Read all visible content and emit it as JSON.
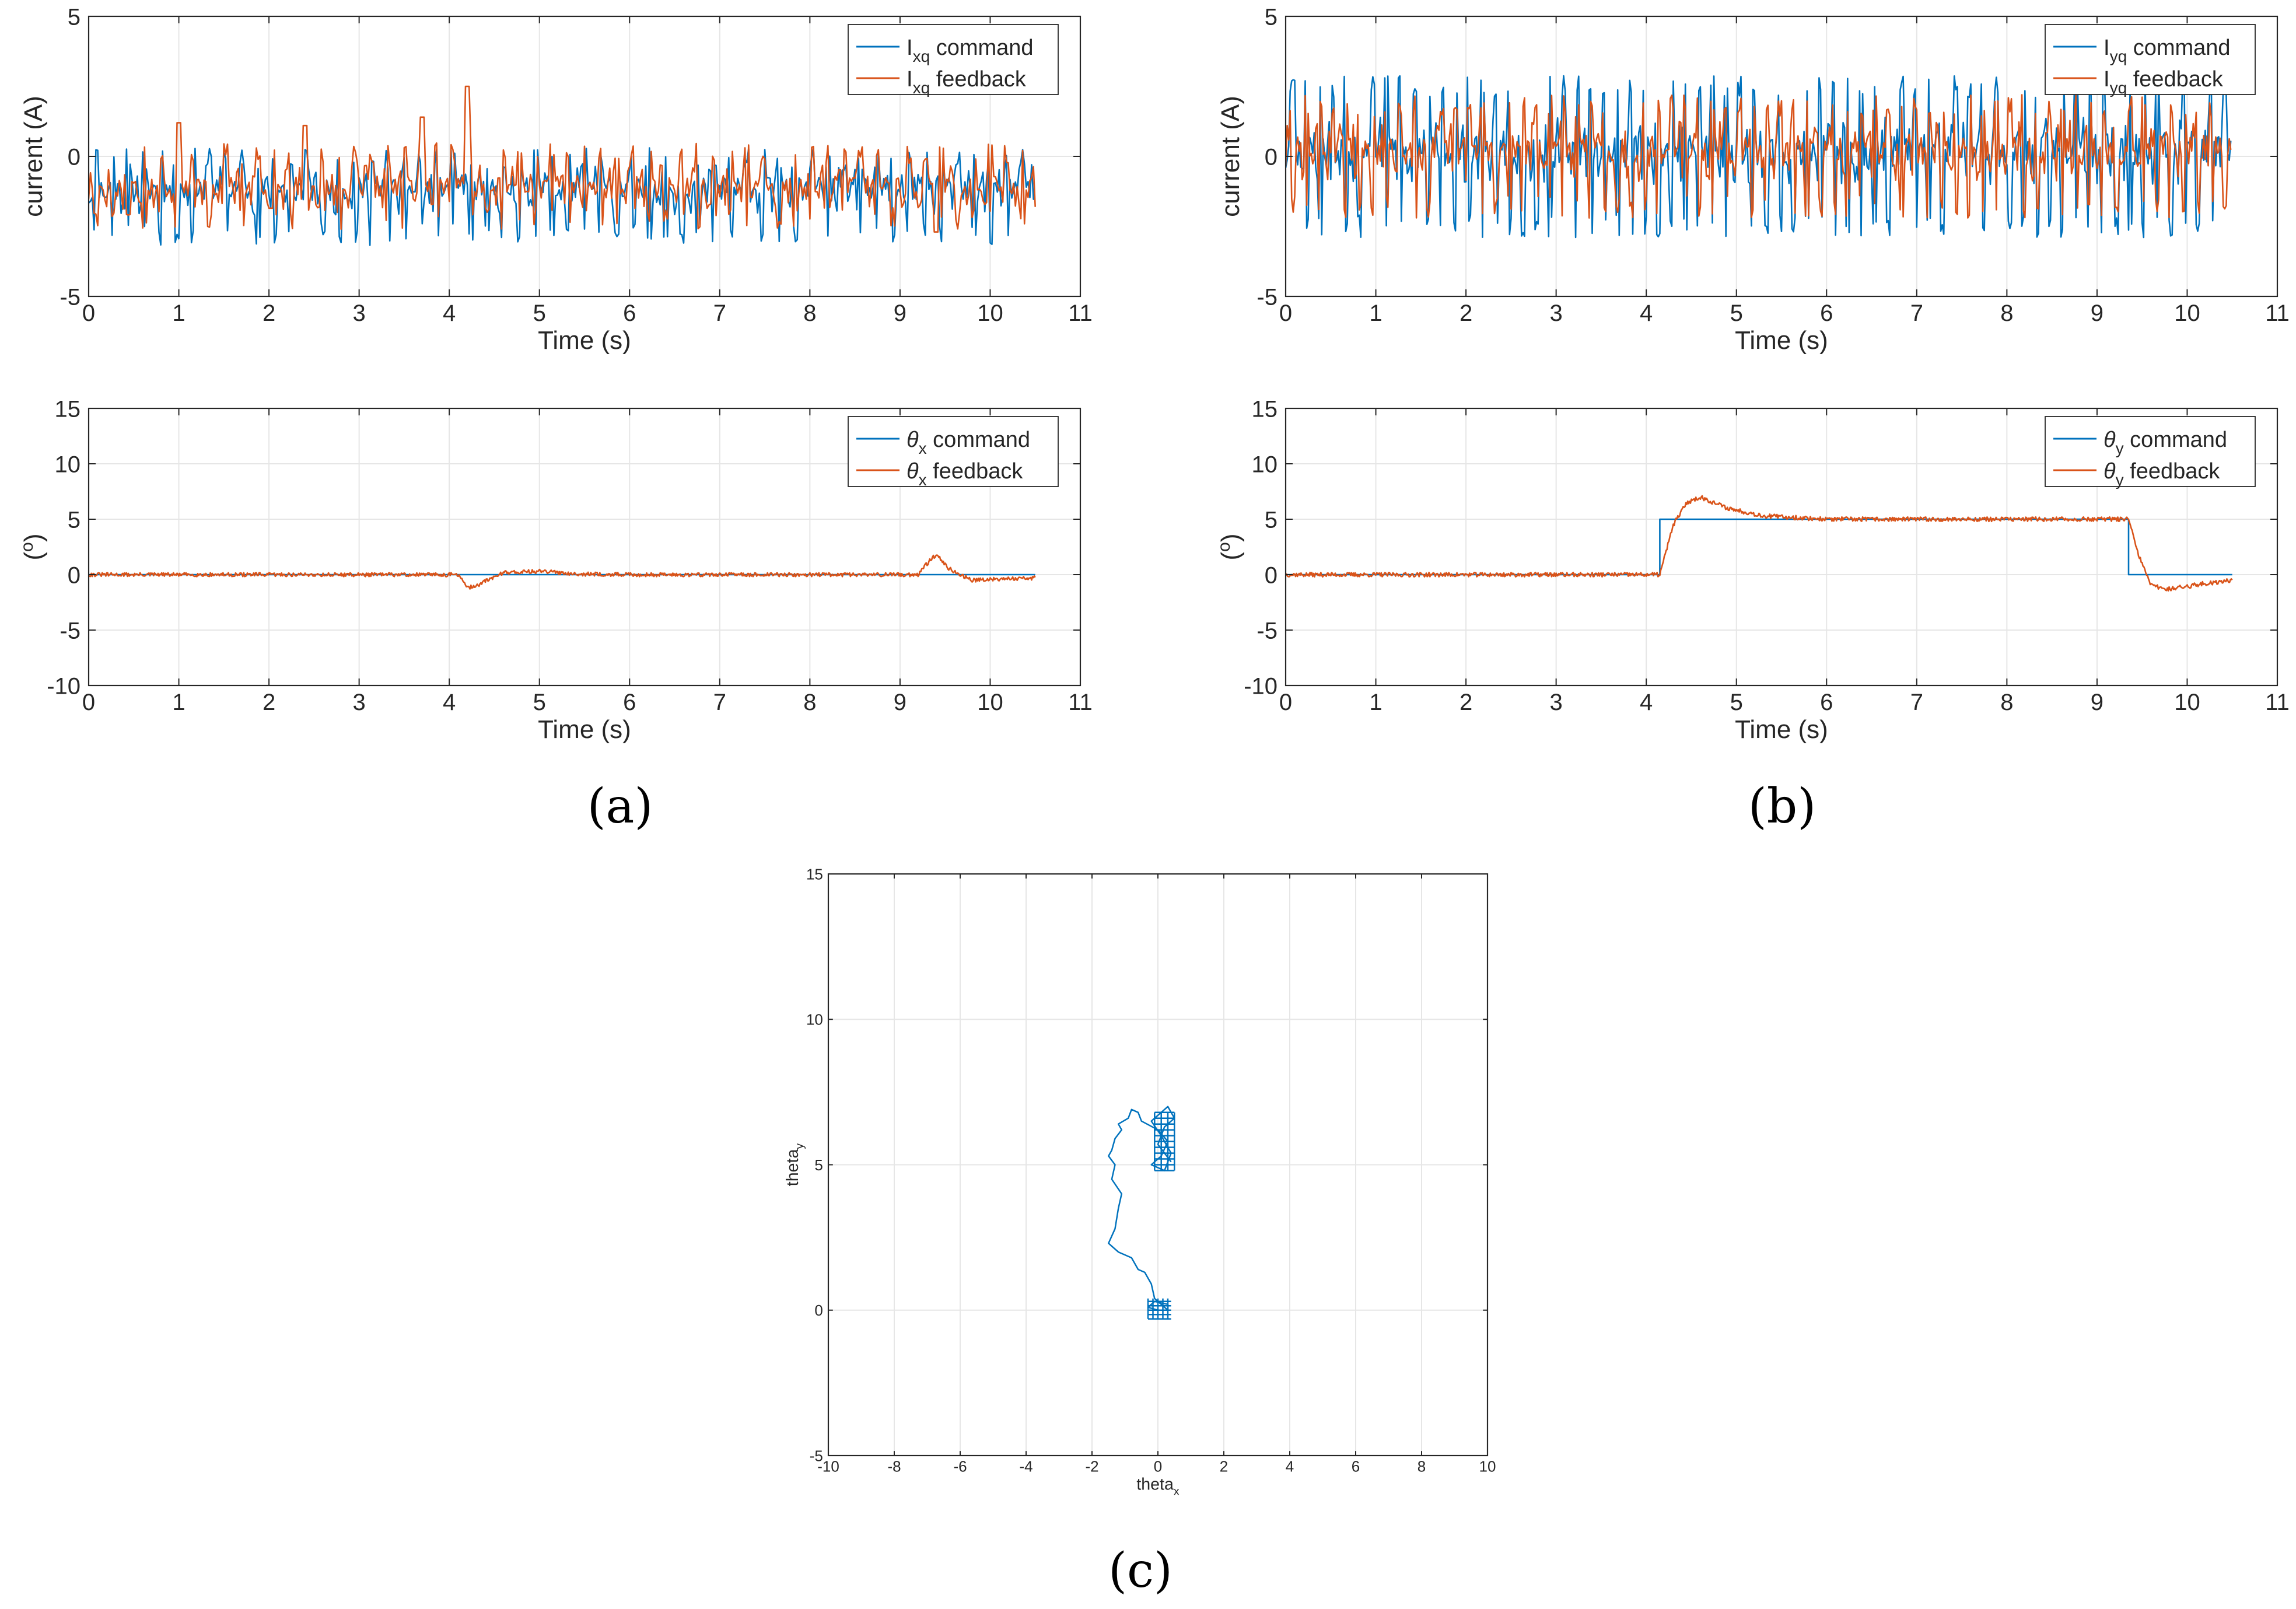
{
  "figure": {
    "panel_labels": [
      "(a)",
      "(b)",
      "(c)"
    ]
  },
  "colors": {
    "command": "#0072BD",
    "feedback": "#D95319",
    "grid": "#e6e6e6",
    "axis": "#262626"
  },
  "chart_data": [
    {
      "id": "ixq",
      "panel": "(a)",
      "type": "line",
      "xlabel": "Time (s)",
      "ylabel": "current (A)",
      "xlim": [
        0,
        11
      ],
      "ylim": [
        -5,
        5
      ],
      "xticks": [
        0,
        1,
        2,
        3,
        4,
        5,
        6,
        7,
        8,
        9,
        10,
        11
      ],
      "yticks": [
        -5,
        0,
        5
      ],
      "grid": true,
      "legend_position": "top-right",
      "legend": [
        {
          "main": "I",
          "sub": "xq",
          "rest": " command"
        },
        {
          "main": "I",
          "sub": "xq",
          "rest": " feedback"
        }
      ],
      "x_end": 10.5,
      "series": [
        {
          "name": "Ixq command",
          "kind": "pulse",
          "center": -1.2,
          "dev": 0.9,
          "spike_low": -3.2,
          "spike_high": 0.3,
          "period": 0.06,
          "seed": 11
        },
        {
          "name": "Ixq feedback",
          "kind": "pulse",
          "center": -1.1,
          "dev": 0.8,
          "spike_low": -2.6,
          "spike_high": 0.5,
          "period": 0.06,
          "seed": 17,
          "peaks": [
            {
              "x": 4.2,
              "y": 2.5
            },
            {
              "x": 1.0,
              "y": 1.2
            },
            {
              "x": 2.4,
              "y": 1.1
            },
            {
              "x": 3.7,
              "y": 1.4
            },
            {
              "x": 9.4,
              "y": -2.7
            }
          ]
        }
      ]
    },
    {
      "id": "iyq",
      "panel": "(b)",
      "type": "line",
      "xlabel": "Time (s)",
      "ylabel": "current (A)",
      "xlim": [
        0,
        11
      ],
      "ylim": [
        -5,
        5
      ],
      "xticks": [
        0,
        1,
        2,
        3,
        4,
        5,
        6,
        7,
        8,
        9,
        10,
        11
      ],
      "yticks": [
        -5,
        0,
        5
      ],
      "grid": true,
      "legend_position": "top-right",
      "legend": [
        {
          "main": "I",
          "sub": "yq",
          "rest": " command"
        },
        {
          "main": "I",
          "sub": "yq",
          "rest": " feedback"
        }
      ],
      "x_end": 10.5,
      "series": [
        {
          "name": "Iyq command",
          "kind": "pulse",
          "center": 0.2,
          "dev": 1.2,
          "spike_low": -2.9,
          "spike_high": 2.9,
          "period": 0.05,
          "seed": 23
        },
        {
          "name": "Iyq feedback",
          "kind": "pulse",
          "center": 0.2,
          "dev": 1.1,
          "spike_low": -2.2,
          "spike_high": 2.2,
          "period": 0.05,
          "seed": 29
        }
      ]
    },
    {
      "id": "thetax",
      "panel": "(a)",
      "type": "line",
      "xlabel": "Time (s)",
      "ylabel": "(o)",
      "xlim": [
        0,
        11
      ],
      "ylim": [
        -10,
        15
      ],
      "xticks": [
        0,
        1,
        2,
        3,
        4,
        5,
        6,
        7,
        8,
        9,
        10,
        11
      ],
      "yticks": [
        -10,
        -5,
        0,
        5,
        10,
        15
      ],
      "grid": true,
      "legend_position": "top-right",
      "legend": [
        {
          "main": "θ",
          "sub": "x",
          "rest": " command"
        },
        {
          "main": "θ",
          "sub": "x",
          "rest": " feedback"
        }
      ],
      "series": [
        {
          "name": "theta_x command",
          "kind": "line",
          "x": [
            0,
            10.5
          ],
          "y": [
            0,
            0
          ]
        },
        {
          "name": "theta_x feedback",
          "kind": "noisy",
          "noise": 0.18,
          "seed": 31,
          "x": [
            0,
            4.1,
            4.2,
            4.3,
            4.6,
            5.0,
            5.5,
            6.0,
            9.2,
            9.3,
            9.4,
            9.55,
            9.8,
            10.0,
            10.5
          ],
          "y": [
            0,
            0,
            -1.2,
            -1.0,
            0.2,
            0.3,
            0.05,
            0,
            0,
            1.0,
            1.8,
            0.5,
            -0.5,
            -0.4,
            -0.3
          ]
        }
      ]
    },
    {
      "id": "thetay",
      "panel": "(b)",
      "type": "line",
      "xlabel": "Time (s)",
      "ylabel": "(o)",
      "xlim": [
        0,
        11
      ],
      "ylim": [
        -10,
        15
      ],
      "xticks": [
        0,
        1,
        2,
        3,
        4,
        5,
        6,
        7,
        8,
        9,
        10,
        11
      ],
      "yticks": [
        -10,
        -5,
        0,
        5,
        10,
        15
      ],
      "grid": true,
      "legend_position": "top-right",
      "legend": [
        {
          "main": "θ",
          "sub": "y",
          "rest": " command"
        },
        {
          "main": "θ",
          "sub": "y",
          "rest": " feedback"
        }
      ],
      "series": [
        {
          "name": "theta_y command",
          "kind": "line",
          "x": [
            0,
            4.15,
            4.15,
            9.35,
            9.35,
            10.5
          ],
          "y": [
            0,
            0,
            5,
            5,
            0,
            0
          ]
        },
        {
          "name": "theta_y feedback",
          "kind": "noisy",
          "noise": 0.2,
          "seed": 37,
          "x": [
            0,
            4.15,
            4.3,
            4.45,
            4.6,
            4.9,
            5.3,
            6.0,
            9.35,
            9.45,
            9.6,
            9.8,
            10.2,
            10.5
          ],
          "y": [
            0,
            0,
            4.5,
            6.5,
            7.0,
            6.0,
            5.3,
            5.0,
            5.0,
            2.0,
            -1.0,
            -1.3,
            -0.8,
            -0.5
          ]
        }
      ]
    },
    {
      "id": "trajectory",
      "panel": "(c)",
      "type": "line",
      "xlabel": "theta",
      "xlabel_sub": "x",
      "ylabel": "theta",
      "ylabel_sub": "y",
      "xlim": [
        -10,
        10
      ],
      "ylim": [
        -5,
        15
      ],
      "xticks": [
        -10,
        -8,
        -6,
        -4,
        -2,
        0,
        2,
        4,
        6,
        8,
        10
      ],
      "yticks": [
        -5,
        0,
        5,
        10,
        15
      ],
      "grid": true,
      "series": [
        {
          "name": "trajectory",
          "kind": "path",
          "x": [
            0.0,
            -0.3,
            -0.1,
            0.3,
            0.3,
            -0.1,
            -0.2,
            -0.4,
            -0.6,
            -0.8,
            -1.2,
            -1.5,
            -1.3,
            -1.2,
            -1.1,
            -1.4,
            -1.3,
            -1.5,
            -1.4,
            -1.3,
            -1.1,
            -1.2,
            -0.9,
            -0.8,
            -0.6,
            -0.5,
            0.0,
            0.3,
            0.1,
            -0.2,
            0.2,
            0.4,
            0.1,
            -0.2,
            0.3,
            0.5,
            0.2,
            0.0,
            0.4
          ],
          "y": [
            0.0,
            0.1,
            0.3,
            0.2,
            0.0,
            0.4,
            0.9,
            1.3,
            1.4,
            1.8,
            2.0,
            2.3,
            2.8,
            3.5,
            4.0,
            4.5,
            5.0,
            5.3,
            5.5,
            5.9,
            6.2,
            6.4,
            6.6,
            6.9,
            6.8,
            6.5,
            6.2,
            5.8,
            5.3,
            5.0,
            4.8,
            5.4,
            6.0,
            6.5,
            7.0,
            6.6,
            6.3,
            5.7,
            5.1
          ]
        },
        {
          "name": "mesh-top",
          "kind": "mesh",
          "x0": -0.1,
          "x1": 0.5,
          "y0": 4.8,
          "y1": 6.8,
          "step": 0.2
        },
        {
          "name": "mesh-bottom",
          "kind": "mesh",
          "x0": -0.3,
          "x1": 0.4,
          "y0": -0.3,
          "y1": 0.4,
          "step": 0.15
        }
      ]
    }
  ]
}
